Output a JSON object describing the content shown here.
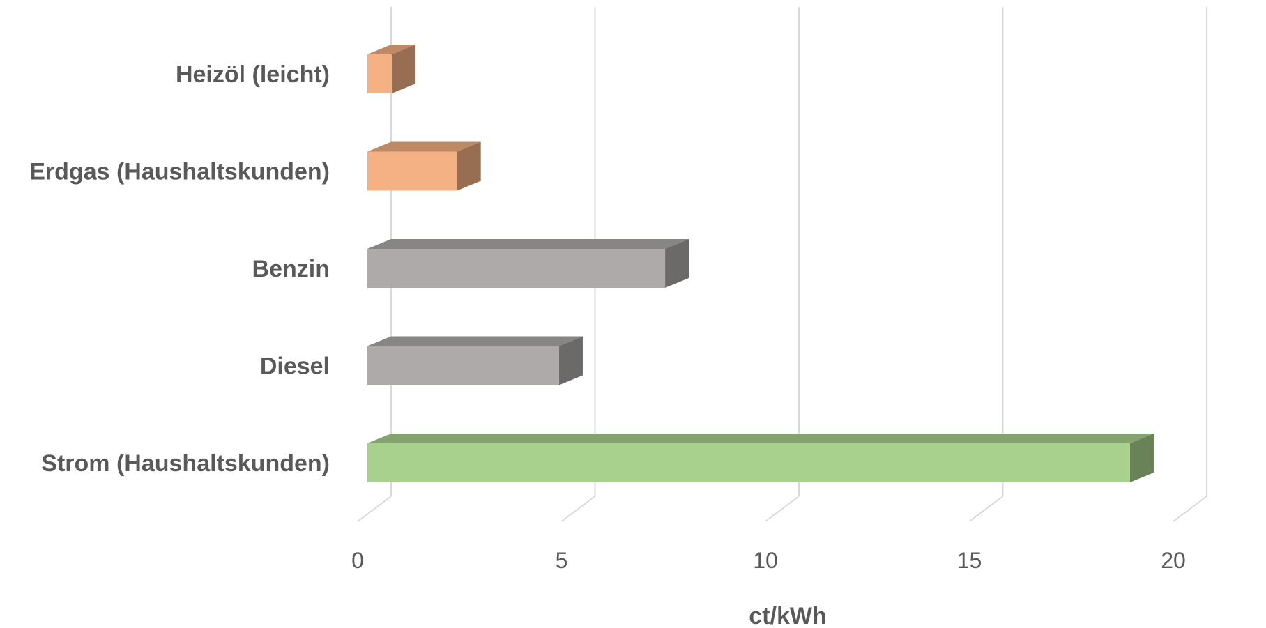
{
  "chart_data": {
    "type": "bar",
    "orientation": "horizontal",
    "three_d": true,
    "categories": [
      "Heizöl (leicht)",
      "Erdgas (Haushaltskunden)",
      "Benzin",
      "Diesel",
      "Strom (Haushaltskunden)"
    ],
    "values": [
      0.6,
      2.2,
      7.3,
      4.7,
      18.7
    ],
    "colors": [
      "#f4b183",
      "#f4b183",
      "#aeaaaa",
      "#aeaaaa",
      "#a9d18e"
    ],
    "xlabel": "ct/kWh",
    "ylabel": "",
    "xlim": [
      0,
      20
    ],
    "xticks": [
      "0",
      "5",
      "10",
      "15",
      "20"
    ],
    "grid": "vertical",
    "legend": "none"
  }
}
